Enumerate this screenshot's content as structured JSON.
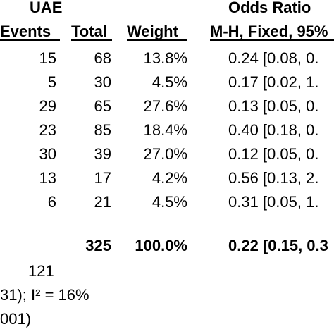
{
  "header": {
    "group_label": "UAE",
    "odds_ratio_label": "Odds Ratio",
    "col_events": "Events",
    "col_total": "Total",
    "col_weight": "Weight",
    "col_method": "M-H, Fixed, 95%"
  },
  "rows": [
    {
      "events": "15",
      "total": "68",
      "weight": "13.8%",
      "or": "0.24 [0.08, 0."
    },
    {
      "events": "5",
      "total": "30",
      "weight": "4.5%",
      "or": "0.17 [0.02, 1."
    },
    {
      "events": "29",
      "total": "65",
      "weight": "27.6%",
      "or": "0.13 [0.05, 0."
    },
    {
      "events": "23",
      "total": "85",
      "weight": "18.4%",
      "or": "0.40 [0.18, 0."
    },
    {
      "events": "30",
      "total": "39",
      "weight": "27.0%",
      "or": "0.12 [0.05, 0."
    },
    {
      "events": "13",
      "total": "17",
      "weight": "4.2%",
      "or": "0.56 [0.13, 2."
    },
    {
      "events": "6",
      "total": "21",
      "weight": "4.5%",
      "or": "0.31 [0.05, 1."
    }
  ],
  "total_row": {
    "total": "325",
    "weight": "100.0%",
    "or": "0.22 [0.15, 0.3"
  },
  "footer": {
    "events_total": "121",
    "heterogeneity": "31); I² = 16%",
    "overall_effect": "001)"
  }
}
